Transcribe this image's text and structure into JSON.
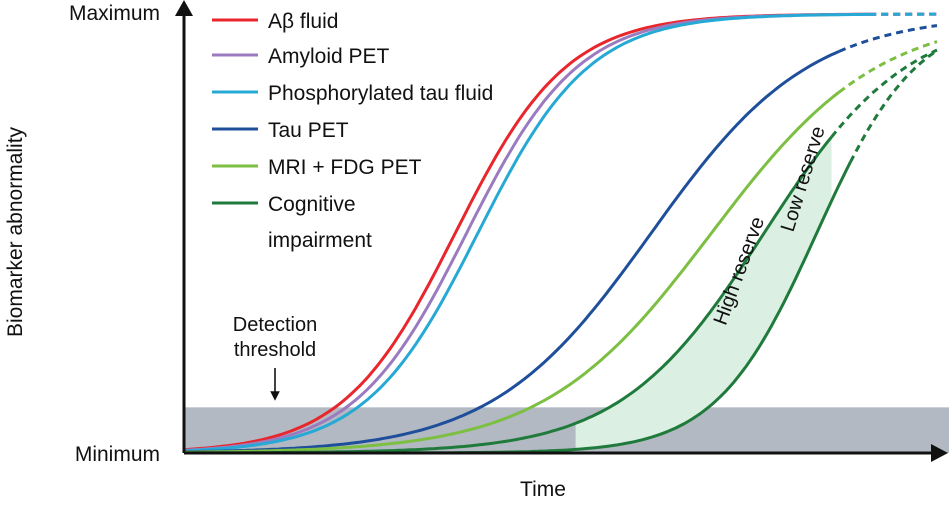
{
  "chart_data": {
    "type": "line",
    "title": "",
    "xlabel": "Time",
    "ylabel": "Biomarker abnormality",
    "y_ticks": [
      "Minimum",
      "Maximum"
    ],
    "xlim": [
      0,
      1
    ],
    "ylim": [
      0,
      1
    ],
    "grid": false,
    "legend_position": "top-left",
    "threshold": {
      "label_line1": "Detection",
      "label_line2": "threshold",
      "ymax": 0.104,
      "color": "#b2b9c2"
    },
    "series": [
      {
        "name": "Aβ fluid",
        "color": "#e8262c",
        "midpoint": 0.36,
        "steepness": 13.5,
        "solid_end": 0.91,
        "dashed_end": 1.0
      },
      {
        "name": "Amyloid PET",
        "color": "#9b7bc0",
        "midpoint": 0.375,
        "steepness": 13.5,
        "solid_end": 0.91,
        "dashed_end": 1.0
      },
      {
        "name": "Phosphorylated tau fluid",
        "color": "#26a9d4",
        "midpoint": 0.39,
        "steepness": 13.5,
        "solid_end": 0.91,
        "dashed_end": 1.0
      },
      {
        "name": "Tau PET",
        "color": "#1f4f9b",
        "midpoint": 0.62,
        "steepness": 9.5,
        "solid_end": 0.87,
        "dashed_end": 1.0
      },
      {
        "name": "MRI + FDG PET",
        "color": "#7cbf42",
        "midpoint": 0.7,
        "steepness": 9.0,
        "solid_end": 0.87,
        "dashed_end": 1.0
      },
      {
        "name": "Cognitive impairment",
        "name_line1": "Cognitive",
        "name_line2": "impairment",
        "color": "#1f7a3c",
        "midpoint": 0.77,
        "steepness": 10.5,
        "solid_end": 0.86,
        "dashed_end": 1.0
      },
      {
        "name": "Cognitive impairment (high reserve)",
        "color": "#1f7a3c",
        "midpoint": 0.84,
        "steepness": 15.0,
        "solid_end": 0.885,
        "dashed_end": 1.0
      }
    ],
    "reserve_band_color": "#dcefe3",
    "annotations": [
      {
        "text": "Low reserve",
        "x": 0.83,
        "y": 0.62
      },
      {
        "text": "High reserve",
        "x": 0.745,
        "y": 0.41
      }
    ]
  }
}
